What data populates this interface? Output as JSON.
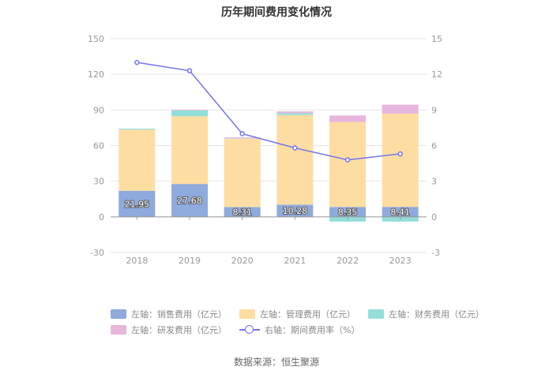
{
  "chart_data": {
    "type": "bar",
    "title": "历年期间费用变化情况",
    "categories": [
      "2018",
      "2019",
      "2020",
      "2021",
      "2022",
      "2023"
    ],
    "left_axis": {
      "ticks": [
        150,
        120,
        90,
        60,
        30,
        0,
        -30
      ],
      "ylim": [
        -30,
        150
      ]
    },
    "right_axis": {
      "ticks": [
        15,
        12,
        9,
        6,
        3,
        0,
        -3
      ],
      "ylim": [
        -3,
        15
      ]
    },
    "series": [
      {
        "name": "左轴：销售费用（亿元）",
        "axis": "left",
        "kind": "bar",
        "color": "#8faadc",
        "values": [
          21.95,
          27.68,
          8.31,
          10.28,
          8.35,
          8.41
        ],
        "labels": [
          "21.95",
          "27.68",
          "8.31",
          "10.28",
          "8.35",
          "8.41"
        ]
      },
      {
        "name": "左轴：管理费用（亿元）",
        "axis": "left",
        "kind": "bar",
        "color": "#fedda2",
        "values": [
          51.5,
          57.0,
          57.5,
          75.5,
          71.5,
          78.5
        ]
      },
      {
        "name": "左轴：财务费用（亿元）",
        "axis": "left",
        "kind": "bar",
        "color": "#93dedb",
        "values": [
          0.8,
          5.0,
          0.3,
          1.5,
          -4.0,
          -4.0
        ]
      },
      {
        "name": "左轴：研发费用（亿元）",
        "axis": "left",
        "kind": "bar",
        "color": "#e6b6dc",
        "values": [
          0.0,
          0.6,
          0.8,
          1.5,
          5.5,
          7.5
        ]
      },
      {
        "name": "右轴：期间费用率（%）",
        "axis": "right",
        "kind": "line",
        "color": "#7474ee",
        "values": [
          13.0,
          12.3,
          7.0,
          5.8,
          4.8,
          5.3
        ]
      }
    ]
  },
  "source": "数据来源：恒生聚源"
}
